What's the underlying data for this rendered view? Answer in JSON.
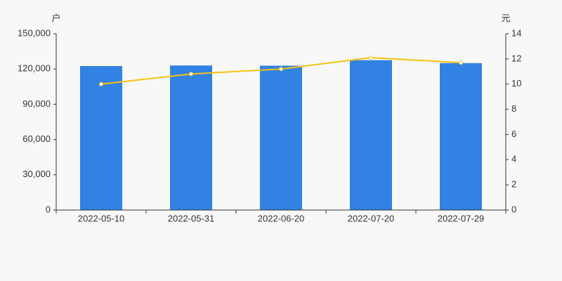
{
  "chart_data": {
    "type": "bar",
    "y_label": "户",
    "y2_label": "元",
    "categories": [
      "2022-05-10",
      "2022-05-31",
      "2022-06-20",
      "2022-07-20",
      "2022-07-29"
    ],
    "series": [
      {
        "type": "bar",
        "color": "#3182e3",
        "values": [
          122500,
          123000,
          122800,
          127500,
          125000
        ]
      },
      {
        "type": "line",
        "axis": "y2",
        "color": "#f5c211",
        "values": [
          10.0,
          10.8,
          11.2,
          12.1,
          11.7
        ]
      }
    ],
    "ylim": [
      0,
      150000
    ],
    "yticks": [
      0,
      {
        "value": 30000,
        "label": "30,000"
      },
      {
        "value": 60000,
        "label": "60,000"
      },
      {
        "value": 90000,
        "label": "90,000"
      },
      {
        "value": 120000,
        "label": "120,000"
      },
      {
        "value": 150000,
        "label": "150,000"
      }
    ],
    "y2lim": [
      0,
      14
    ],
    "y2ticks": [
      0,
      2,
      4,
      6,
      8,
      10,
      12,
      14
    ]
  }
}
